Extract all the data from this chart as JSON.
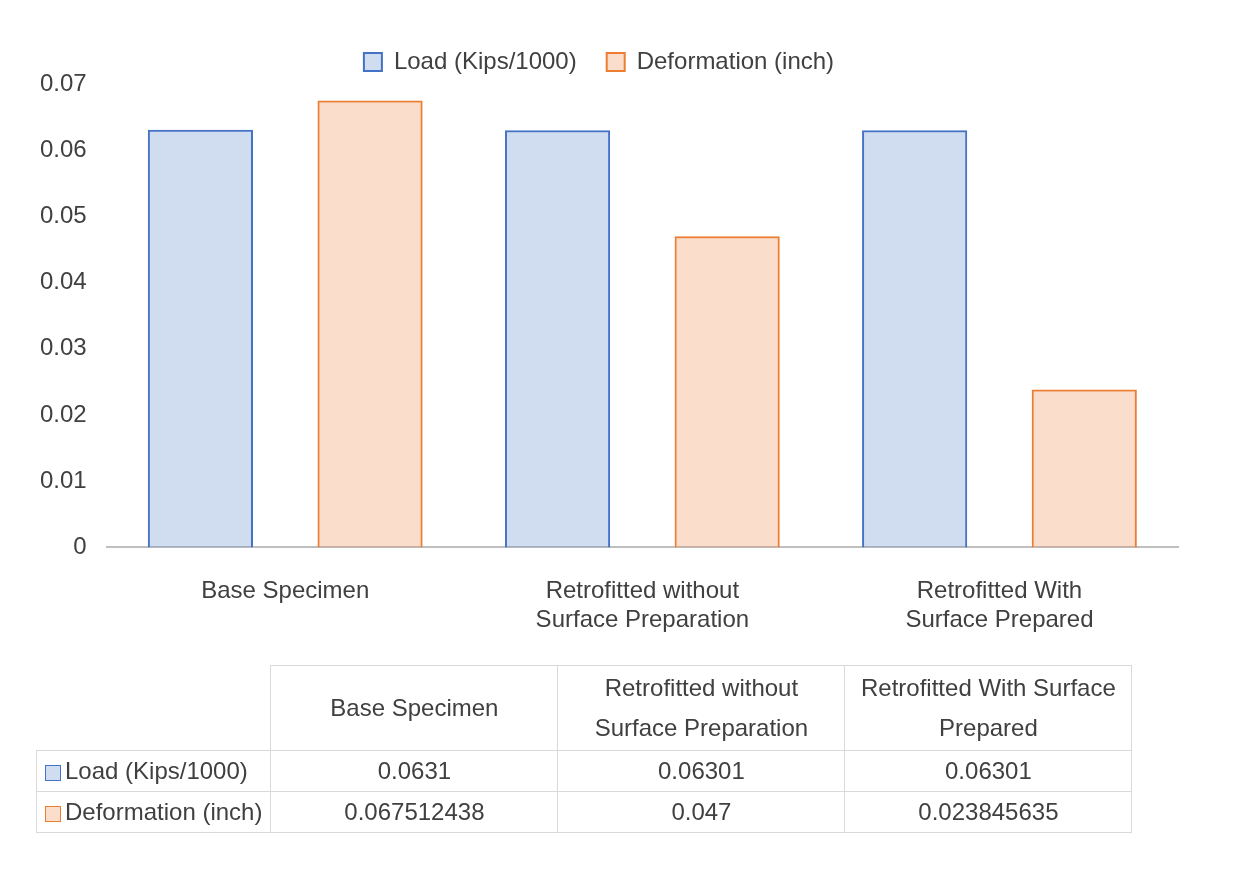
{
  "chart_data": {
    "type": "bar",
    "categories": [
      "Base Specimen",
      "Retrofitted without Surface Preparation",
      "Retrofitted With Surface Prepared"
    ],
    "series": [
      {
        "name": "Load (Kips/1000)",
        "color": "#4472c4",
        "values": [
          0.0631,
          0.06301,
          0.06301
        ]
      },
      {
        "name": "Deformation (inch)",
        "color": "#ed7d31",
        "values": [
          0.067512438,
          0.047,
          0.023845635
        ]
      }
    ],
    "ylim": [
      0,
      0.07
    ],
    "yticks": [
      0,
      0.01,
      0.02,
      0.03,
      0.04,
      0.05,
      0.06,
      0.07
    ],
    "grid": false,
    "legend": "top",
    "data_labels": true
  }
}
